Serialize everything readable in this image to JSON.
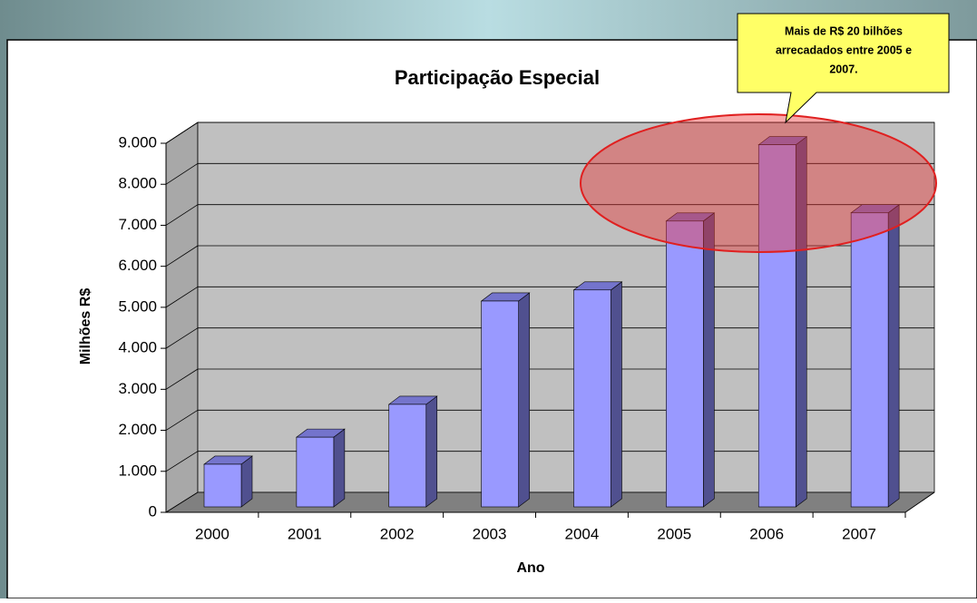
{
  "chart_data": {
    "type": "bar",
    "title": "Participação Especial",
    "x_label": "Ano",
    "y_label": "Milhões R$",
    "categories": [
      "2000",
      "2001",
      "2002",
      "2003",
      "2004",
      "2005",
      "2006",
      "2007"
    ],
    "values": [
      1040,
      1700,
      2500,
      5020,
      5290,
      6970,
      8830,
      7170
    ],
    "color": "#9999ff",
    "ylim": [
      0,
      9000
    ],
    "yticks": [
      0,
      {
        "value": 1000,
        "label": "1.000"
      },
      {
        "value": 2000,
        "label": "2.000"
      },
      {
        "value": 3000,
        "label": "3.000"
      },
      {
        "value": 4000,
        "label": "4.000"
      },
      {
        "value": 5000,
        "label": "5.000"
      },
      {
        "value": 6000,
        "label": "6.000"
      },
      {
        "value": 7000,
        "label": "7.000"
      },
      {
        "value": 8000,
        "label": "8.000"
      },
      {
        "value": 9000,
        "label": "9.000"
      }
    ],
    "grid": true,
    "annotation": [
      "Mais de R$ 20  bilhões",
      "arrecadados entre  2005 e",
      "2007."
    ]
  }
}
